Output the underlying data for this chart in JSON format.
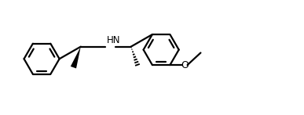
{
  "bg_color": "#ffffff",
  "line_color": "#000000",
  "lw": 1.6,
  "figsize": [
    3.87,
    1.47
  ],
  "dpi": 100,
  "xlim": [
    0,
    10.5
  ],
  "ylim": [
    0,
    4.2
  ],
  "HN_label": "HN",
  "O_label": "O",
  "font_size": 8.5
}
